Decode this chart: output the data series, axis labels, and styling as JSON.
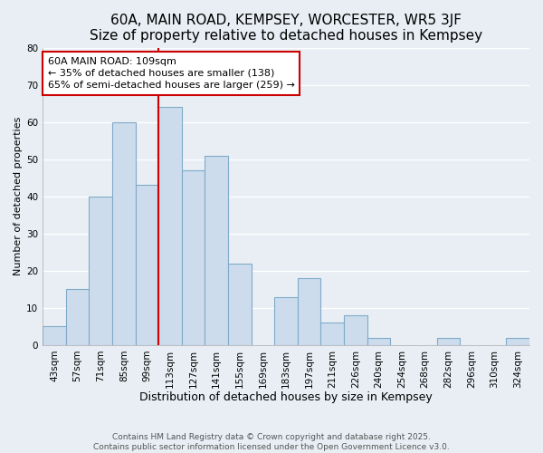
{
  "title": "60A, MAIN ROAD, KEMPSEY, WORCESTER, WR5 3JF",
  "subtitle": "Size of property relative to detached houses in Kempsey",
  "xlabel": "Distribution of detached houses by size in Kempsey",
  "ylabel": "Number of detached properties",
  "bar_color": "#ccdcec",
  "bar_edge_color": "#80aac8",
  "background_color": "#e8eef4",
  "grid_color": "#ffffff",
  "categories": [
    "43sqm",
    "57sqm",
    "71sqm",
    "85sqm",
    "99sqm",
    "113sqm",
    "127sqm",
    "141sqm",
    "155sqm",
    "169sqm",
    "183sqm",
    "197sqm",
    "211sqm",
    "226sqm",
    "240sqm",
    "254sqm",
    "268sqm",
    "282sqm",
    "296sqm",
    "310sqm",
    "324sqm"
  ],
  "values": [
    5,
    15,
    40,
    60,
    43,
    64,
    47,
    51,
    22,
    0,
    13,
    18,
    6,
    8,
    2,
    0,
    0,
    2,
    0,
    0,
    2
  ],
  "ylim": [
    0,
    80
  ],
  "yticks": [
    0,
    10,
    20,
    30,
    40,
    50,
    60,
    70,
    80
  ],
  "vline_color": "#cc0000",
  "annotation_text": "60A MAIN ROAD: 109sqm\n← 35% of detached houses are smaller (138)\n65% of semi-detached houses are larger (259) →",
  "annotation_box_color": "#ffffff",
  "annotation_box_edge": "#cc0000",
  "footer_line1": "Contains HM Land Registry data © Crown copyright and database right 2025.",
  "footer_line2": "Contains public sector information licensed under the Open Government Licence v3.0.",
  "title_fontsize": 11,
  "xlabel_fontsize": 9,
  "ylabel_fontsize": 8,
  "tick_fontsize": 7.5,
  "annotation_fontsize": 8,
  "footer_fontsize": 6.5
}
